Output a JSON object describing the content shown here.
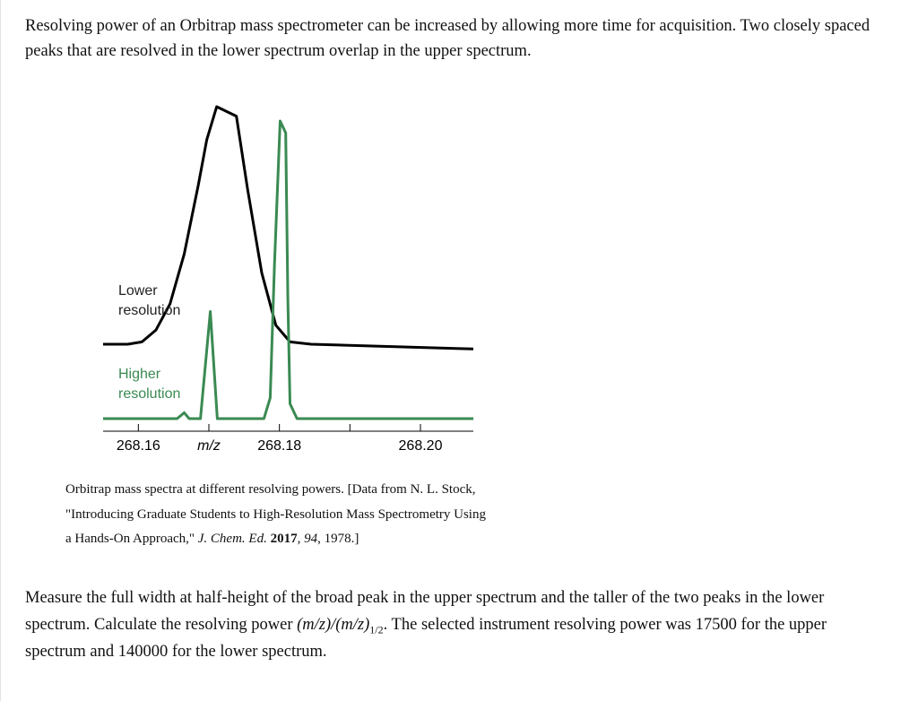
{
  "intro_text": "Resolving power of an Orbitrap mass spectrometer can be increased by allowing more time for acquisition. Two closely spaced peaks that are resolved in the lower spectrum overlap in the upper spectrum.",
  "caption": {
    "main": "Orbitrap mass spectra at different resolving powers. [Data from N. L. Stock, \"Introducing Graduate Students to High-Resolution Mass Spectrometry Using a Hands-On Approach,\" ",
    "journal": "J. Chem. Ed.",
    "year": "2017",
    "sep": ",",
    "volume": "94",
    "pages": ", 1978.]"
  },
  "question": {
    "part1": "Measure the full width at half-height of the broad peak in the upper spectrum and the taller of the two peaks in the lower spectrum. Calculate the resolving power ",
    "formula": "(m/z)/(m/z)",
    "subscript": "1/2",
    "part2": ". The selected instrument resolving power was 17500 for the upper spectrum and 140000 for the lower spectrum."
  },
  "chart_data": {
    "type": "line",
    "xlabel": "m/z",
    "x_ticks": [
      {
        "value": 268.16,
        "label": "268.16"
      },
      {
        "value": 268.18,
        "label": "268.18"
      },
      {
        "value": 268.2,
        "label": "268.20"
      }
    ],
    "xlim": [
      268.155,
      268.2075
    ],
    "series": [
      {
        "name": "Lower resolution",
        "color": "#000000",
        "points": [
          [
            268.155,
            0.0
          ],
          [
            268.1585,
            0.0
          ],
          [
            268.1605,
            0.01
          ],
          [
            268.1625,
            0.06
          ],
          [
            268.1645,
            0.17
          ],
          [
            268.1665,
            0.38
          ],
          [
            268.1685,
            0.67
          ],
          [
            268.1697,
            0.86
          ],
          [
            268.1711,
            1.0
          ],
          [
            268.1739,
            0.96
          ],
          [
            268.1755,
            0.65
          ],
          [
            268.1775,
            0.3
          ],
          [
            268.1795,
            0.08
          ],
          [
            268.1815,
            0.01
          ],
          [
            268.1845,
            0.0
          ],
          [
            268.2075,
            -0.02
          ]
        ]
      },
      {
        "name": "Higher resolution",
        "color": "#3a8a52",
        "points": [
          [
            268.155,
            0.0
          ],
          [
            268.1655,
            0.0
          ],
          [
            268.1665,
            0.02
          ],
          [
            268.1672,
            0.0
          ],
          [
            268.1688,
            0.0
          ],
          [
            268.1702,
            0.36
          ],
          [
            268.1712,
            0.0
          ],
          [
            268.1778,
            0.0
          ],
          [
            268.1787,
            0.07
          ],
          [
            268.1793,
            0.52
          ],
          [
            268.1801,
            1.0
          ],
          [
            268.1809,
            0.96
          ],
          [
            268.1812,
            0.4
          ],
          [
            268.1815,
            0.05
          ],
          [
            268.1825,
            0.0
          ],
          [
            268.2075,
            0.0
          ]
        ]
      }
    ]
  }
}
